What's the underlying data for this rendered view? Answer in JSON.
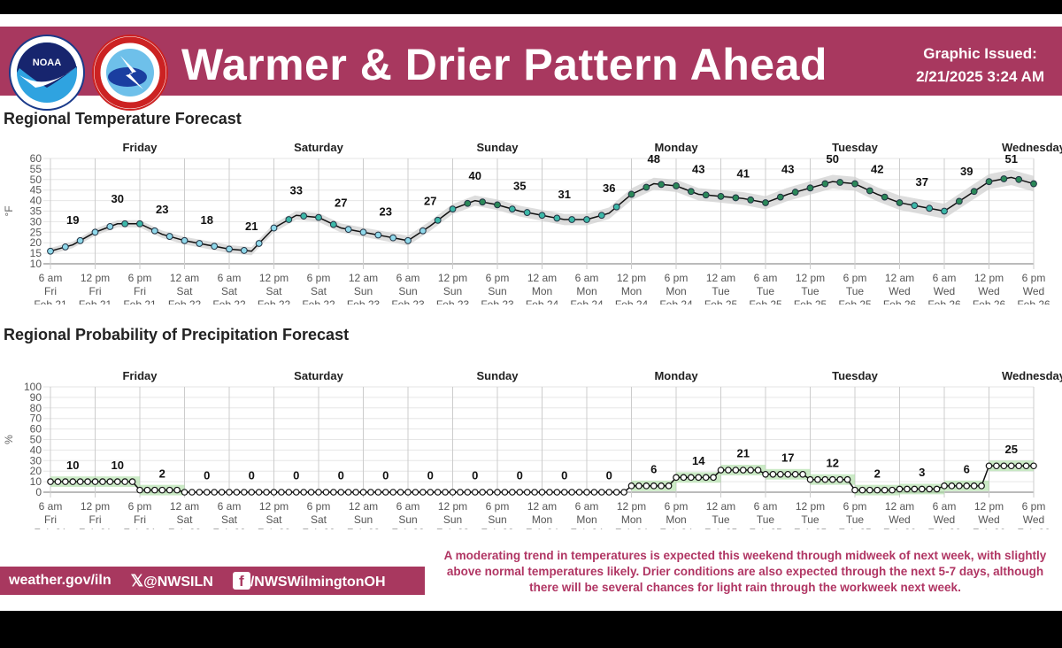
{
  "header": {
    "title": "Warmer & Drier Pattern Ahead",
    "issued_label": "Graphic Issued:",
    "issued_value": "2/21/2025 3:24 AM",
    "logo_noaa": "NOAA",
    "logo_nws": "NATIONAL WEATHER SERVICE"
  },
  "colors": {
    "brand": "#a8385f",
    "band_temp": "#cfcfcf",
    "band_pop": "#a8dca0"
  },
  "chart_data": [
    {
      "type": "line",
      "title": "Regional Temperature Forecast",
      "ylabel": "°F",
      "ylim": [
        10,
        60
      ],
      "yticks": [
        10,
        15,
        20,
        25,
        30,
        35,
        40,
        45,
        50,
        55,
        60
      ],
      "days": [
        "Friday",
        "Saturday",
        "Sunday",
        "Monday",
        "Tuesday",
        "Wednesday"
      ],
      "xticks": [
        [
          "6 am",
          "Fri",
          "Feb 21"
        ],
        [
          "12 pm",
          "Fri",
          "Feb 21"
        ],
        [
          "6 pm",
          "Fri",
          "Feb 21"
        ],
        [
          "12 am",
          "Sat",
          "Feb 22"
        ],
        [
          "6 am",
          "Sat",
          "Feb 22"
        ],
        [
          "12 pm",
          "Sat",
          "Feb 22"
        ],
        [
          "6 pm",
          "Sat",
          "Feb 22"
        ],
        [
          "12 am",
          "Sun",
          "Feb 23"
        ],
        [
          "6 am",
          "Sun",
          "Feb 23"
        ],
        [
          "12 pm",
          "Sun",
          "Feb 23"
        ],
        [
          "6 pm",
          "Sun",
          "Feb 23"
        ],
        [
          "12 am",
          "Mon",
          "Feb 24"
        ],
        [
          "6 am",
          "Mon",
          "Feb 24"
        ],
        [
          "12 pm",
          "Mon",
          "Feb 24"
        ],
        [
          "6 pm",
          "Mon",
          "Feb 24"
        ],
        [
          "12 am",
          "Tue",
          "Feb 25"
        ],
        [
          "6 am",
          "Tue",
          "Feb 25"
        ],
        [
          "12 pm",
          "Tue",
          "Feb 25"
        ],
        [
          "6 pm",
          "Tue",
          "Feb 25"
        ],
        [
          "12 am",
          "Wed",
          "Feb 26"
        ],
        [
          "6 am",
          "Wed",
          "Feb 26"
        ],
        [
          "12 pm",
          "Wed",
          "Feb 26"
        ],
        [
          "6 pm",
          "Wed",
          "Feb 26"
        ]
      ],
      "series_3hourly": [
        16,
        19,
        25,
        29,
        29,
        24,
        21,
        19,
        17,
        16,
        27,
        33,
        32,
        27,
        25,
        23,
        21,
        28,
        36,
        40,
        38,
        35,
        33,
        31,
        31,
        34,
        43,
        48,
        47,
        43,
        42,
        41,
        39,
        43,
        46,
        49,
        48,
        43,
        39,
        37,
        35,
        42,
        49,
        51,
        48
      ],
      "block_labels": [
        19,
        30,
        23,
        18,
        21,
        33,
        27,
        23,
        27,
        40,
        35,
        31,
        36,
        48,
        43,
        41,
        43,
        50,
        42,
        37,
        39,
        51
      ]
    },
    {
      "type": "line",
      "title": "Regional Probability of Precipitation Forecast",
      "ylabel": "%",
      "ylim": [
        0,
        100
      ],
      "yticks": [
        0,
        10,
        20,
        30,
        40,
        50,
        60,
        70,
        80,
        90,
        100
      ],
      "days": [
        "Friday",
        "Saturday",
        "Sunday",
        "Monday",
        "Tuesday",
        "Wednesday"
      ],
      "block_values": [
        10,
        10,
        2,
        0,
        0,
        0,
        0,
        0,
        0,
        0,
        0,
        0,
        0,
        6,
        14,
        21,
        17,
        12,
        2,
        3,
        6,
        25
      ]
    }
  ],
  "footer": {
    "website": "weather.gov/iln",
    "x_handle": "@NWSILN",
    "fb_handle": "/NWSWilmingtonOH"
  },
  "summary": "A moderating trend in temperatures is expected this weekend through midweek of next week, with slightly above normal temperatures likely. Drier conditions are also expected through the next 5-7 days, although there will be several chances for light rain through the workweek next week."
}
